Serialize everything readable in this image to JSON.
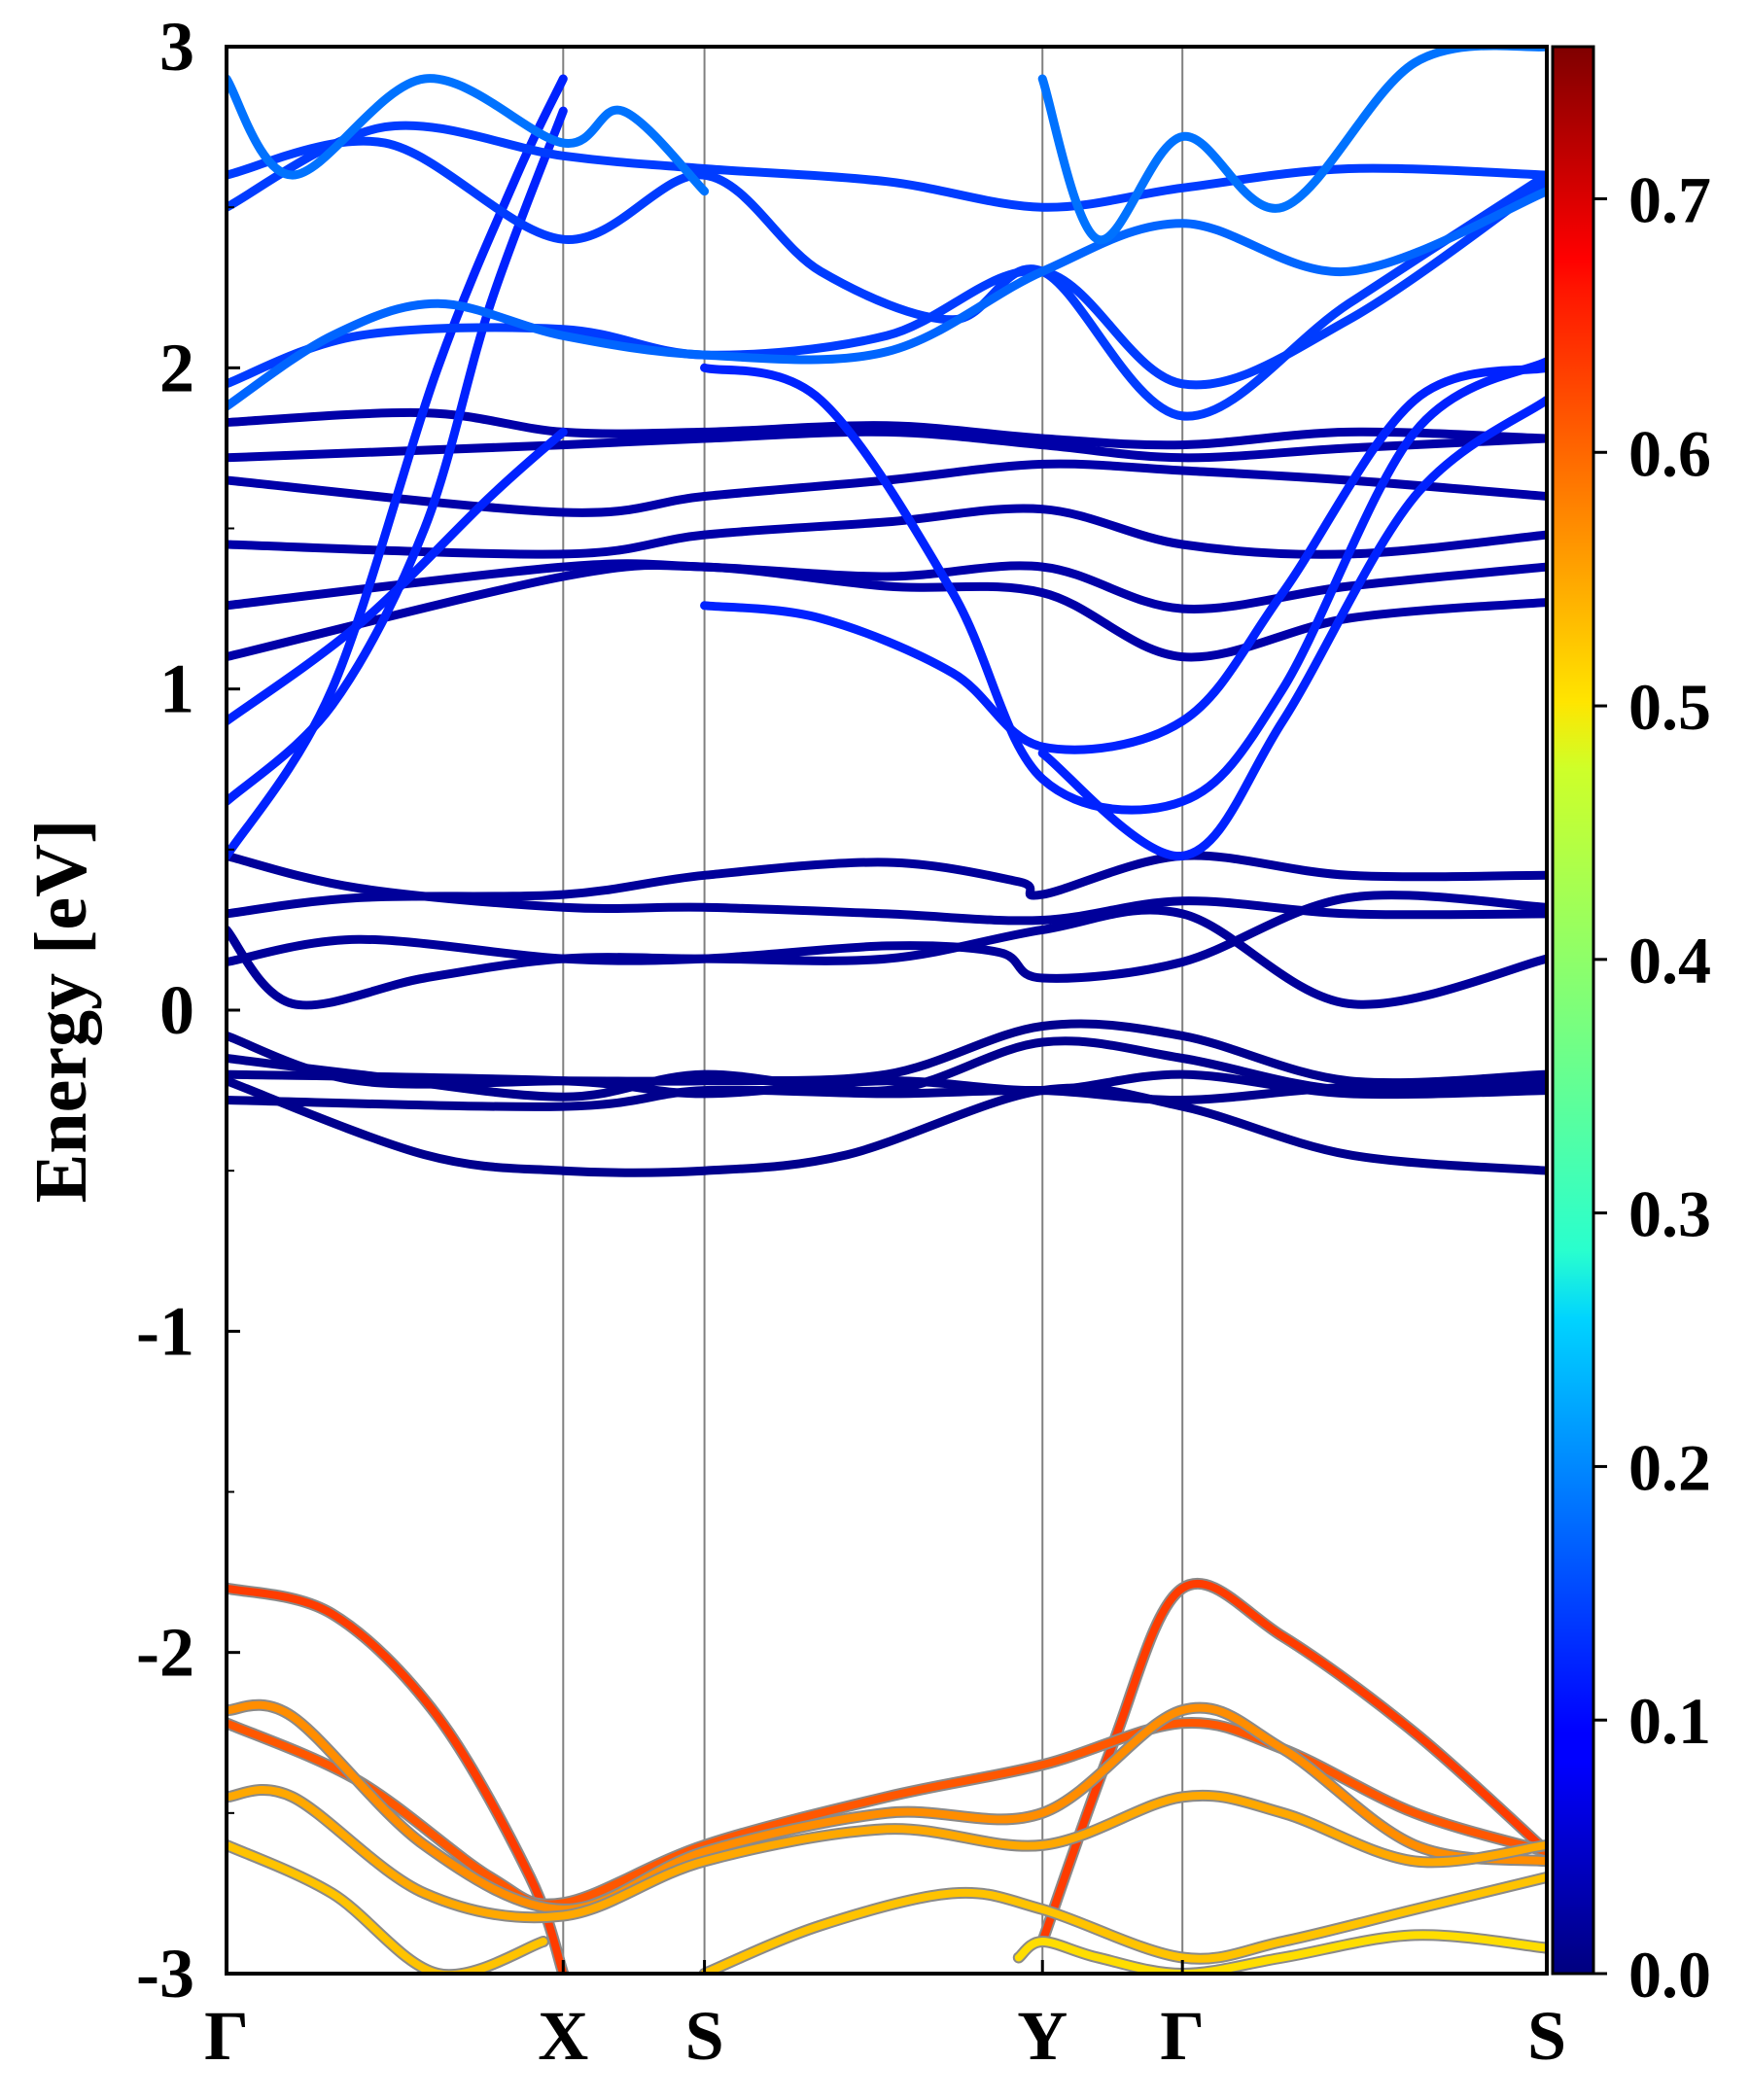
{
  "chart_data": {
    "type": "line",
    "ylabel": "Energy [eV]",
    "ylim": [
      -3,
      3
    ],
    "yticks": [
      "3",
      "2",
      "1",
      "0",
      "-1",
      "-2",
      "-3"
    ],
    "ytick_values": [
      3,
      2,
      1,
      0,
      -1,
      -2,
      -3
    ],
    "x_path_labels": [
      "Γ",
      "X",
      "S",
      "Y",
      "Γ",
      "S"
    ],
    "x_path_positions": [
      0,
      0.255,
      0.362,
      0.618,
      0.724,
      1.0
    ],
    "grid": "vertical lines at high-symmetry points",
    "colorbar": {
      "colormap": "jet",
      "range": [
        0.0,
        0.76
      ],
      "tick_labels": [
        "0.0",
        "0.1",
        "0.2",
        "0.3",
        "0.4",
        "0.5",
        "0.6",
        "0.7"
      ],
      "tick_values": [
        0.0,
        0.1,
        0.2,
        0.3,
        0.4,
        0.5,
        0.6,
        0.7
      ]
    },
    "series": [
      {
        "group": "conduction",
        "color_value": 0.02,
        "x": [
          0,
          0.05,
          0.15,
          0.255,
          0.362,
          0.5,
          0.618,
          0.724,
          0.85,
          1.0
        ],
        "y": [
          0.25,
          0.02,
          0.1,
          0.16,
          0.16,
          0.16,
          0.25,
          0.3,
          0.02,
          0.16
        ]
      },
      {
        "group": "conduction",
        "color_value": 0.02,
        "x": [
          0,
          0.1,
          0.255,
          0.362,
          0.5,
          0.6,
          0.618,
          0.724,
          0.85,
          1.0
        ],
        "y": [
          0.3,
          0.35,
          0.36,
          0.42,
          0.46,
          0.4,
          0.36,
          0.48,
          0.42,
          0.42
        ]
      },
      {
        "group": "conduction",
        "color_value": 0.02,
        "x": [
          0,
          0.1,
          0.255,
          0.362,
          0.5,
          0.618,
          0.724,
          0.85,
          1.0
        ],
        "y": [
          0.48,
          0.38,
          0.32,
          0.32,
          0.3,
          0.28,
          0.34,
          0.3,
          0.3
        ]
      },
      {
        "group": "conduction",
        "color_value": 0.02,
        "x": [
          0,
          0.1,
          0.255,
          0.362,
          0.5,
          0.585,
          0.618,
          0.724,
          0.85,
          1.0
        ],
        "y": [
          0.15,
          0.22,
          0.16,
          0.16,
          0.2,
          0.18,
          0.1,
          0.15,
          0.35,
          0.32
        ]
      },
      {
        "group": "conduction",
        "color_value": 0.03,
        "x": [
          0,
          0.255,
          0.362,
          0.5,
          0.618,
          0.724,
          0.85,
          1.0
        ],
        "y": [
          1.1,
          1.35,
          1.38,
          1.32,
          1.3,
          1.1,
          1.22,
          1.27
        ]
      },
      {
        "group": "conduction",
        "color_value": 0.03,
        "x": [
          0,
          0.255,
          0.362,
          0.5,
          0.618,
          0.724,
          0.85,
          1.0
        ],
        "y": [
          1.26,
          1.38,
          1.38,
          1.35,
          1.38,
          1.25,
          1.32,
          1.38
        ]
      },
      {
        "group": "conduction",
        "color_value": 0.03,
        "x": [
          0,
          0.255,
          0.362,
          0.5,
          0.618,
          0.724,
          0.85,
          1.0
        ],
        "y": [
          1.45,
          1.42,
          1.48,
          1.52,
          1.56,
          1.45,
          1.42,
          1.48
        ]
      },
      {
        "group": "conduction",
        "color_value": 0.03,
        "x": [
          0,
          0.255,
          0.362,
          0.5,
          0.618,
          0.724,
          0.85,
          1.0
        ],
        "y": [
          1.65,
          1.55,
          1.6,
          1.65,
          1.7,
          1.68,
          1.65,
          1.6
        ]
      },
      {
        "group": "conduction",
        "color_value": 0.03,
        "x": [
          0,
          0.255,
          0.362,
          0.5,
          0.618,
          0.724,
          0.85,
          1.0
        ],
        "y": [
          1.72,
          1.76,
          1.78,
          1.8,
          1.76,
          1.72,
          1.75,
          1.78
        ]
      },
      {
        "group": "conduction",
        "color_value": 0.03,
        "x": [
          0,
          0.15,
          0.255,
          0.362,
          0.5,
          0.618,
          0.724,
          0.85,
          1.0
        ],
        "y": [
          1.83,
          1.86,
          1.8,
          1.8,
          1.82,
          1.78,
          1.76,
          1.8,
          1.78
        ]
      },
      {
        "group": "conduction",
        "color_value": 0.12,
        "x": [
          0,
          0.08,
          0.16,
          0.22,
          0.255
        ],
        "y": [
          0.48,
          1.0,
          2.0,
          2.6,
          2.9
        ]
      },
      {
        "group": "conduction",
        "color_value": 0.12,
        "x": [
          0,
          0.08,
          0.15,
          0.2,
          0.255
        ],
        "y": [
          0.65,
          0.95,
          1.5,
          2.2,
          2.8
        ]
      },
      {
        "group": "conduction",
        "color_value": 0.12,
        "x": [
          0,
          0.1,
          0.2,
          0.255
        ],
        "y": [
          0.9,
          1.2,
          1.6,
          1.8
        ]
      },
      {
        "group": "conduction",
        "color_value": 0.12,
        "x": [
          0.362,
          0.45,
          0.55,
          0.618,
          0.724,
          0.8,
          0.9,
          1.0
        ],
        "y": [
          1.26,
          1.22,
          1.05,
          0.82,
          0.9,
          1.3,
          1.9,
          2.0
        ]
      },
      {
        "group": "conduction",
        "color_value": 0.12,
        "x": [
          0.362,
          0.45,
          0.55,
          0.618,
          0.724,
          0.8,
          0.9,
          1.0
        ],
        "y": [
          2.0,
          1.9,
          1.3,
          0.72,
          0.65,
          1.0,
          1.8,
          2.02
        ]
      },
      {
        "group": "conduction",
        "color_value": 0.12,
        "x": [
          0.618,
          0.724,
          0.8,
          0.9,
          1.0
        ],
        "y": [
          0.8,
          0.48,
          0.9,
          1.6,
          1.9
        ]
      },
      {
        "group": "conduction",
        "color_value": 0.14,
        "x": [
          0,
          0.1,
          0.255,
          0.362,
          0.5,
          0.618,
          0.724,
          0.85,
          1.0
        ],
        "y": [
          1.95,
          2.1,
          2.12,
          2.04,
          2.1,
          2.3,
          1.95,
          2.15,
          2.58
        ]
      },
      {
        "group": "conduction",
        "color_value": 0.14,
        "x": [
          0,
          0.12,
          0.255,
          0.362,
          0.5,
          0.618,
          0.724,
          0.85,
          1.0
        ],
        "y": [
          2.5,
          2.75,
          2.66,
          2.62,
          2.58,
          2.5,
          2.56,
          2.62,
          2.6
        ]
      },
      {
        "group": "conduction",
        "color_value": 0.14,
        "x": [
          0,
          0.12,
          0.255,
          0.362,
          0.45,
          0.55,
          0.618,
          0.724,
          0.85,
          1.0
        ],
        "y": [
          2.6,
          2.7,
          2.4,
          2.6,
          2.3,
          2.15,
          2.3,
          1.85,
          2.2,
          2.6
        ]
      },
      {
        "group": "conduction",
        "color_value": 0.17,
        "x": [
          0,
          0.08,
          0.16,
          0.255,
          0.362,
          0.5,
          0.618,
          0.724,
          0.85,
          1.0
        ],
        "y": [
          1.88,
          2.1,
          2.2,
          2.1,
          2.04,
          2.05,
          2.3,
          2.45,
          2.3,
          2.55
        ]
      },
      {
        "group": "conduction",
        "color_value": 0.18,
        "x": [
          0,
          0.05,
          0.15,
          0.255,
          0.3,
          0.362
        ],
        "y": [
          2.9,
          2.6,
          2.9,
          2.7,
          2.8,
          2.55
        ]
      },
      {
        "group": "conduction",
        "color_value": 0.18,
        "x": [
          0.618,
          0.66,
          0.724,
          0.8,
          0.9,
          1.0
        ],
        "y": [
          2.9,
          2.4,
          2.72,
          2.5,
          2.95,
          3.0
        ]
      },
      {
        "group": "valence-top",
        "color_value": 0.01,
        "x": [
          0,
          0.1,
          0.255,
          0.362,
          0.5,
          0.618,
          0.724,
          0.85,
          1.0
        ],
        "y": [
          -0.08,
          -0.22,
          -0.22,
          -0.22,
          -0.2,
          -0.05,
          -0.08,
          -0.22,
          -0.2
        ]
      },
      {
        "group": "valence-top",
        "color_value": 0.01,
        "x": [
          0,
          0.1,
          0.255,
          0.362,
          0.5,
          0.618,
          0.724,
          0.85,
          1.0
        ],
        "y": [
          -0.15,
          -0.2,
          -0.27,
          -0.2,
          -0.25,
          -0.1,
          -0.15,
          -0.25,
          -0.22
        ]
      },
      {
        "group": "valence-top",
        "color_value": 0.01,
        "x": [
          0,
          0.255,
          0.362,
          0.5,
          0.618,
          0.724,
          0.85,
          1.0
        ],
        "y": [
          -0.2,
          -0.22,
          -0.26,
          -0.22,
          -0.25,
          -0.2,
          -0.26,
          -0.25
        ]
      },
      {
        "group": "valence-top",
        "color_value": 0.01,
        "x": [
          0,
          0.255,
          0.362,
          0.5,
          0.618,
          0.724,
          0.85,
          1.0
        ],
        "y": [
          -0.28,
          -0.3,
          -0.25,
          -0.26,
          -0.25,
          -0.28,
          -0.24,
          -0.24
        ]
      },
      {
        "group": "valence-top",
        "color_value": 0.01,
        "x": [
          0,
          0.15,
          0.255,
          0.362,
          0.47,
          0.618,
          0.724,
          0.85,
          1.0
        ],
        "y": [
          -0.22,
          -0.45,
          -0.5,
          -0.5,
          -0.45,
          -0.25,
          -0.3,
          -0.45,
          -0.5
        ]
      },
      {
        "group": "valence",
        "color_value": 0.62,
        "x": [
          0,
          0.08,
          0.16,
          0.23,
          0.255
        ],
        "y": [
          -1.8,
          -1.88,
          -2.2,
          -2.7,
          -3.0
        ]
      },
      {
        "group": "valence",
        "color_value": 0.62,
        "x": [
          0.618,
          0.67,
          0.724,
          0.8,
          0.9,
          1.0
        ],
        "y": [
          -2.9,
          -2.3,
          -1.8,
          -1.95,
          -2.25,
          -2.62
        ]
      },
      {
        "group": "valence",
        "color_value": 0.6,
        "x": [
          0,
          0.1,
          0.2,
          0.255,
          0.362,
          0.5,
          0.618,
          0.724,
          0.8,
          0.9,
          1.0
        ],
        "y": [
          -2.22,
          -2.4,
          -2.7,
          -2.78,
          -2.6,
          -2.45,
          -2.35,
          -2.22,
          -2.3,
          -2.5,
          -2.62
        ]
      },
      {
        "group": "valence",
        "color_value": 0.56,
        "x": [
          0,
          0.05,
          0.15,
          0.255,
          0.362,
          0.5,
          0.618,
          0.724,
          0.8,
          0.9,
          1.0
        ],
        "y": [
          -2.18,
          -2.2,
          -2.6,
          -2.8,
          -2.62,
          -2.5,
          -2.5,
          -2.18,
          -2.3,
          -2.6,
          -2.65
        ]
      },
      {
        "group": "valence",
        "color_value": 0.54,
        "x": [
          0,
          0.05,
          0.15,
          0.255,
          0.362,
          0.5,
          0.618,
          0.724,
          0.8,
          0.9,
          1.0
        ],
        "y": [
          -2.45,
          -2.45,
          -2.75,
          -2.82,
          -2.65,
          -2.55,
          -2.6,
          -2.45,
          -2.5,
          -2.65,
          -2.6
        ]
      },
      {
        "group": "valence",
        "color_value": 0.52,
        "x": [
          0,
          0.08,
          0.16,
          0.24
        ],
        "y": [
          -2.6,
          -2.75,
          -3.0,
          -2.9
        ]
      },
      {
        "group": "valence",
        "color_value": 0.52,
        "x": [
          0.362,
          0.45,
          0.55,
          0.618,
          0.724,
          0.8,
          0.9,
          1.0
        ],
        "y": [
          -3.0,
          -2.85,
          -2.75,
          -2.8,
          -2.95,
          -2.9,
          -2.8,
          -2.7
        ]
      },
      {
        "group": "valence",
        "color_value": 0.5,
        "x": [
          0.6,
          0.618,
          0.66,
          0.724,
          0.8,
          0.9,
          1.0
        ],
        "y": [
          -2.95,
          -2.9,
          -2.95,
          -3.0,
          -2.95,
          -2.88,
          -2.92
        ]
      }
    ]
  }
}
